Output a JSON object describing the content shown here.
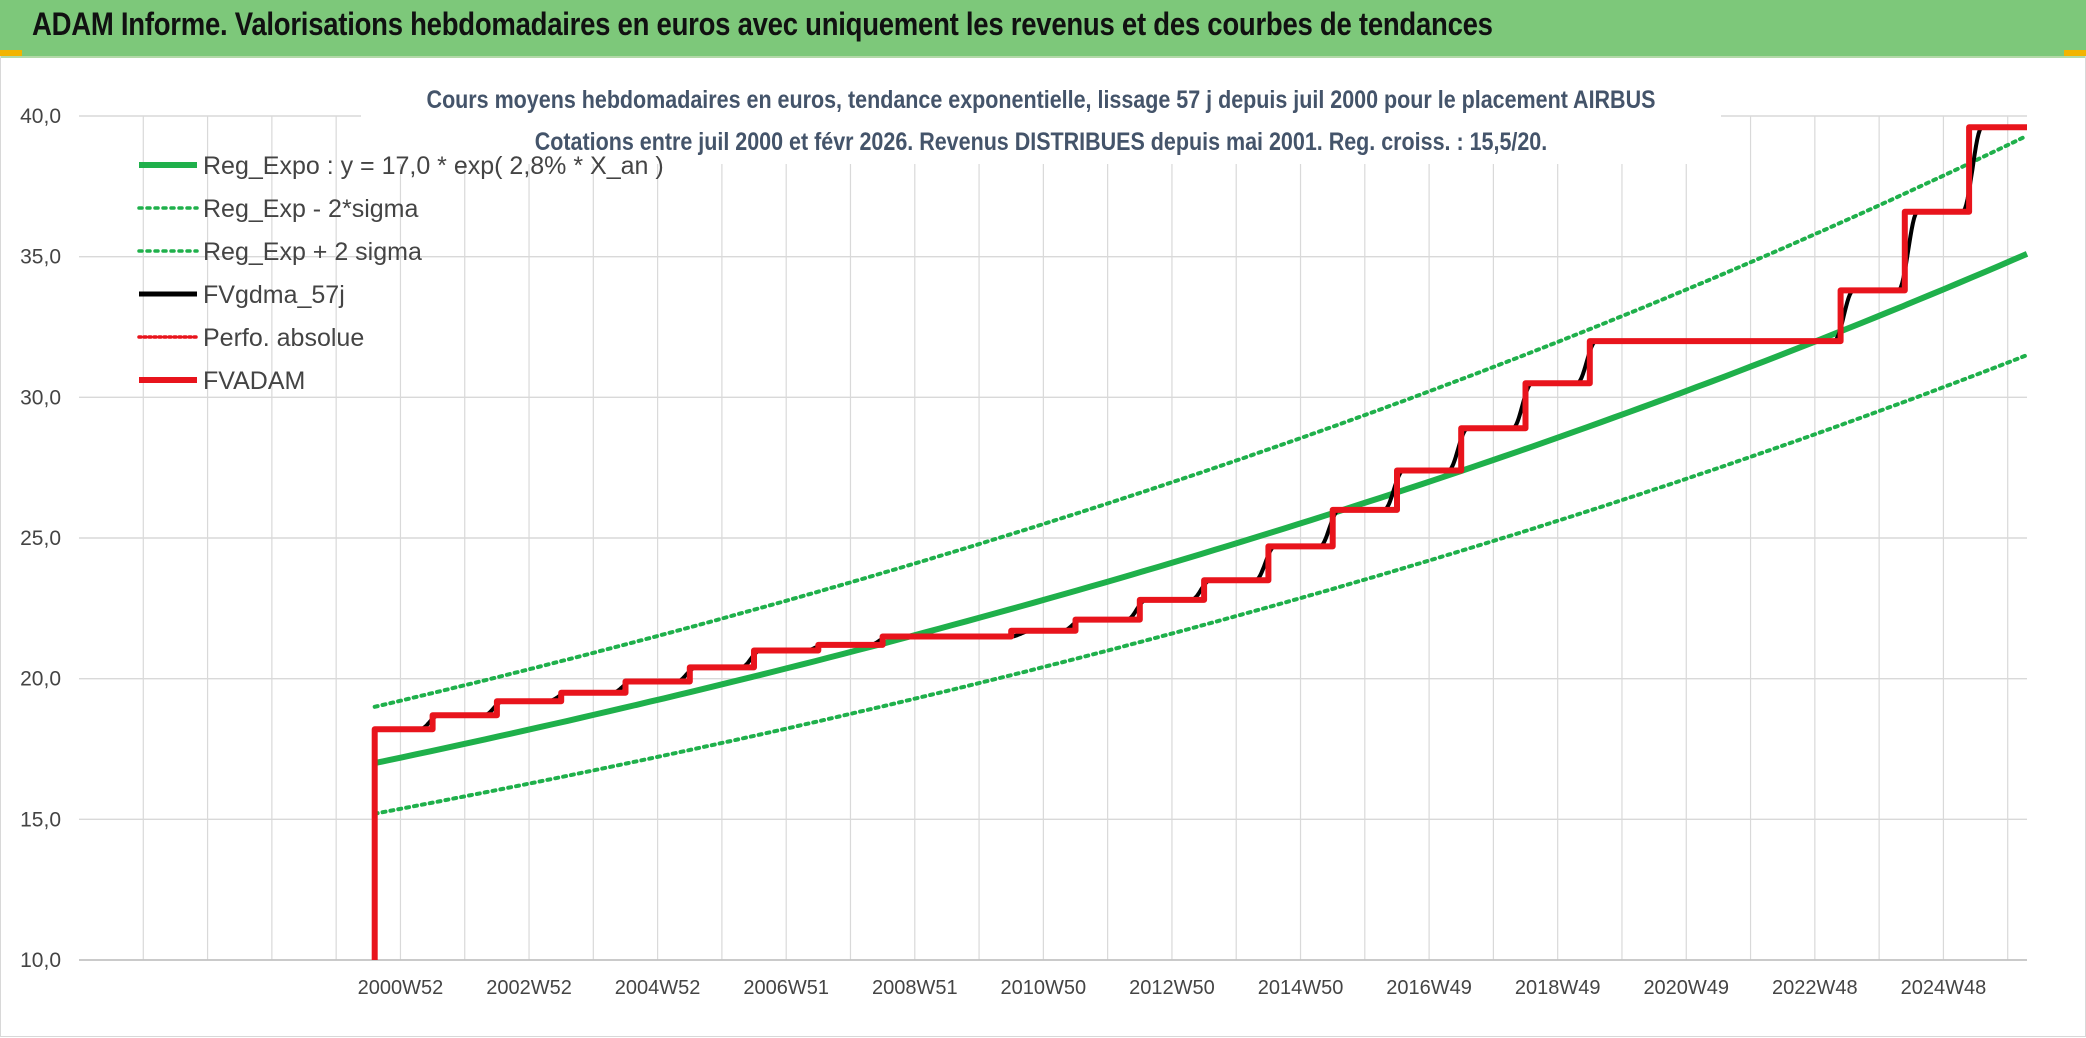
{
  "banner": {
    "title": "ADAM Informe. Valorisations hebdomadaires en euros avec uniquement les revenus et des courbes de tendances"
  },
  "colors": {
    "banner_bg": "#7dc87a",
    "reg_expo": "#1fb04b",
    "fvgdma": "#000000",
    "fvadam": "#e8141c",
    "perfo": "#e8141c",
    "grid": "#d9d9d9"
  },
  "chart_data": {
    "type": "line",
    "title": "Cours moyens hebdomadaires en euros, tendance exponentielle, lissage 57 j depuis juil 2000 pour le placement AIRBUS",
    "subtitle": "Cotations entre juil 2000 et févr 2026. Revenus DISTRIBUES depuis mai 2001. Reg. croiss. : 15,5/20.",
    "xlabel": "",
    "ylabel": "",
    "ylim": [
      10,
      40
    ],
    "xlim": [
      1996.0,
      2026.3
    ],
    "grid": true,
    "legend_position": "top-left",
    "y_ticks": [
      "10,0",
      "15,0",
      "20,0",
      "25,0",
      "30,0",
      "35,0",
      "40,0"
    ],
    "x_ticks": [
      {
        "label": "2000W52",
        "x": 2001.0
      },
      {
        "label": "2002W52",
        "x": 2003.0
      },
      {
        "label": "2004W52",
        "x": 2005.0
      },
      {
        "label": "2006W51",
        "x": 2007.0
      },
      {
        "label": "2008W51",
        "x": 2009.0
      },
      {
        "label": "2010W50",
        "x": 2011.0
      },
      {
        "label": "2012W50",
        "x": 2013.0
      },
      {
        "label": "2014W50",
        "x": 2015.0
      },
      {
        "label": "2016W49",
        "x": 2017.0
      },
      {
        "label": "2018W49",
        "x": 2019.0
      },
      {
        "label": "2020W49",
        "x": 2021.0
      },
      {
        "label": "2022W48",
        "x": 2023.0
      },
      {
        "label": "2024W48",
        "x": 2025.0
      }
    ],
    "series": [
      {
        "name": "Reg_Expo : y = 17,0 * exp( 2,8% *  X_an )",
        "style": "solid-thick",
        "color": "#1fb04b",
        "x": [
          2000.6,
          2026.3
        ],
        "y": [
          17.0,
          35.1
        ],
        "curve": "exponential"
      },
      {
        "name": "Reg_Exp - 2*sigma",
        "style": "dotted",
        "color": "#1fb04b",
        "x": [
          2000.6,
          2026.3
        ],
        "y": [
          15.2,
          31.5
        ],
        "curve": "exponential"
      },
      {
        "name": "Reg_Exp + 2 sigma",
        "style": "dotted",
        "color": "#1fb04b",
        "x": [
          2000.6,
          2026.3
        ],
        "y": [
          19.0,
          39.3
        ],
        "curve": "exponential"
      },
      {
        "name": "FVgdma_57j",
        "style": "solid",
        "color": "#000000",
        "x": [
          2000.6,
          2001.3,
          2001.6,
          2002.3,
          2002.6,
          2003.3,
          2003.6,
          2004.3,
          2004.6,
          2005.3,
          2005.6,
          2006.3,
          2006.6,
          2007.3,
          2007.6,
          2008.3,
          2008.6,
          2010.5,
          2010.8,
          2011.3,
          2011.6,
          2012.3,
          2012.6,
          2013.3,
          2013.6,
          2014.3,
          2014.6,
          2015.3,
          2015.6,
          2016.3,
          2016.6,
          2017.3,
          2017.6,
          2018.3,
          2018.6,
          2019.3,
          2019.6,
          2023.3,
          2023.6,
          2024.3,
          2024.6,
          2025.3,
          2025.6,
          2026.3
        ],
        "y": [
          18.2,
          18.2,
          18.7,
          18.7,
          19.2,
          19.2,
          19.5,
          19.5,
          19.9,
          19.9,
          20.4,
          20.4,
          21.0,
          21.0,
          21.2,
          21.2,
          21.5,
          21.5,
          21.7,
          21.7,
          22.1,
          22.1,
          22.8,
          22.8,
          23.5,
          23.5,
          24.7,
          24.7,
          26.0,
          26.0,
          27.4,
          27.4,
          28.9,
          28.9,
          30.5,
          30.5,
          32.0,
          32.0,
          33.8,
          33.8,
          36.6,
          36.6,
          39.6,
          39.6
        ]
      },
      {
        "name": "Perfo. absolue",
        "style": "dotted",
        "color": "#e8141c",
        "x": [],
        "y": []
      },
      {
        "name": "FVADAM",
        "style": "solid-thick",
        "color": "#e8141c",
        "x": [
          2000.6,
          2000.6,
          2001.5,
          2001.5,
          2002.5,
          2002.5,
          2003.5,
          2003.5,
          2004.5,
          2004.5,
          2005.5,
          2005.5,
          2006.5,
          2006.5,
          2007.5,
          2007.5,
          2008.5,
          2008.5,
          2010.5,
          2010.5,
          2011.5,
          2011.5,
          2012.5,
          2012.5,
          2013.5,
          2013.5,
          2014.5,
          2014.5,
          2015.5,
          2015.5,
          2016.5,
          2016.5,
          2017.5,
          2017.5,
          2018.5,
          2018.5,
          2019.5,
          2019.5,
          2023.4,
          2023.4,
          2024.4,
          2024.4,
          2025.4,
          2025.4,
          2026.3
        ],
        "y": [
          10.0,
          18.2,
          18.2,
          18.7,
          18.7,
          19.2,
          19.2,
          19.5,
          19.5,
          19.9,
          19.9,
          20.4,
          20.4,
          21.0,
          21.0,
          21.2,
          21.2,
          21.5,
          21.5,
          21.7,
          21.7,
          22.1,
          22.1,
          22.8,
          22.8,
          23.5,
          23.5,
          24.7,
          24.7,
          26.0,
          26.0,
          27.4,
          27.4,
          28.9,
          28.9,
          30.5,
          30.5,
          32.0,
          32.0,
          33.8,
          33.8,
          36.6,
          36.6,
          39.6,
          39.6
        ]
      }
    ]
  }
}
